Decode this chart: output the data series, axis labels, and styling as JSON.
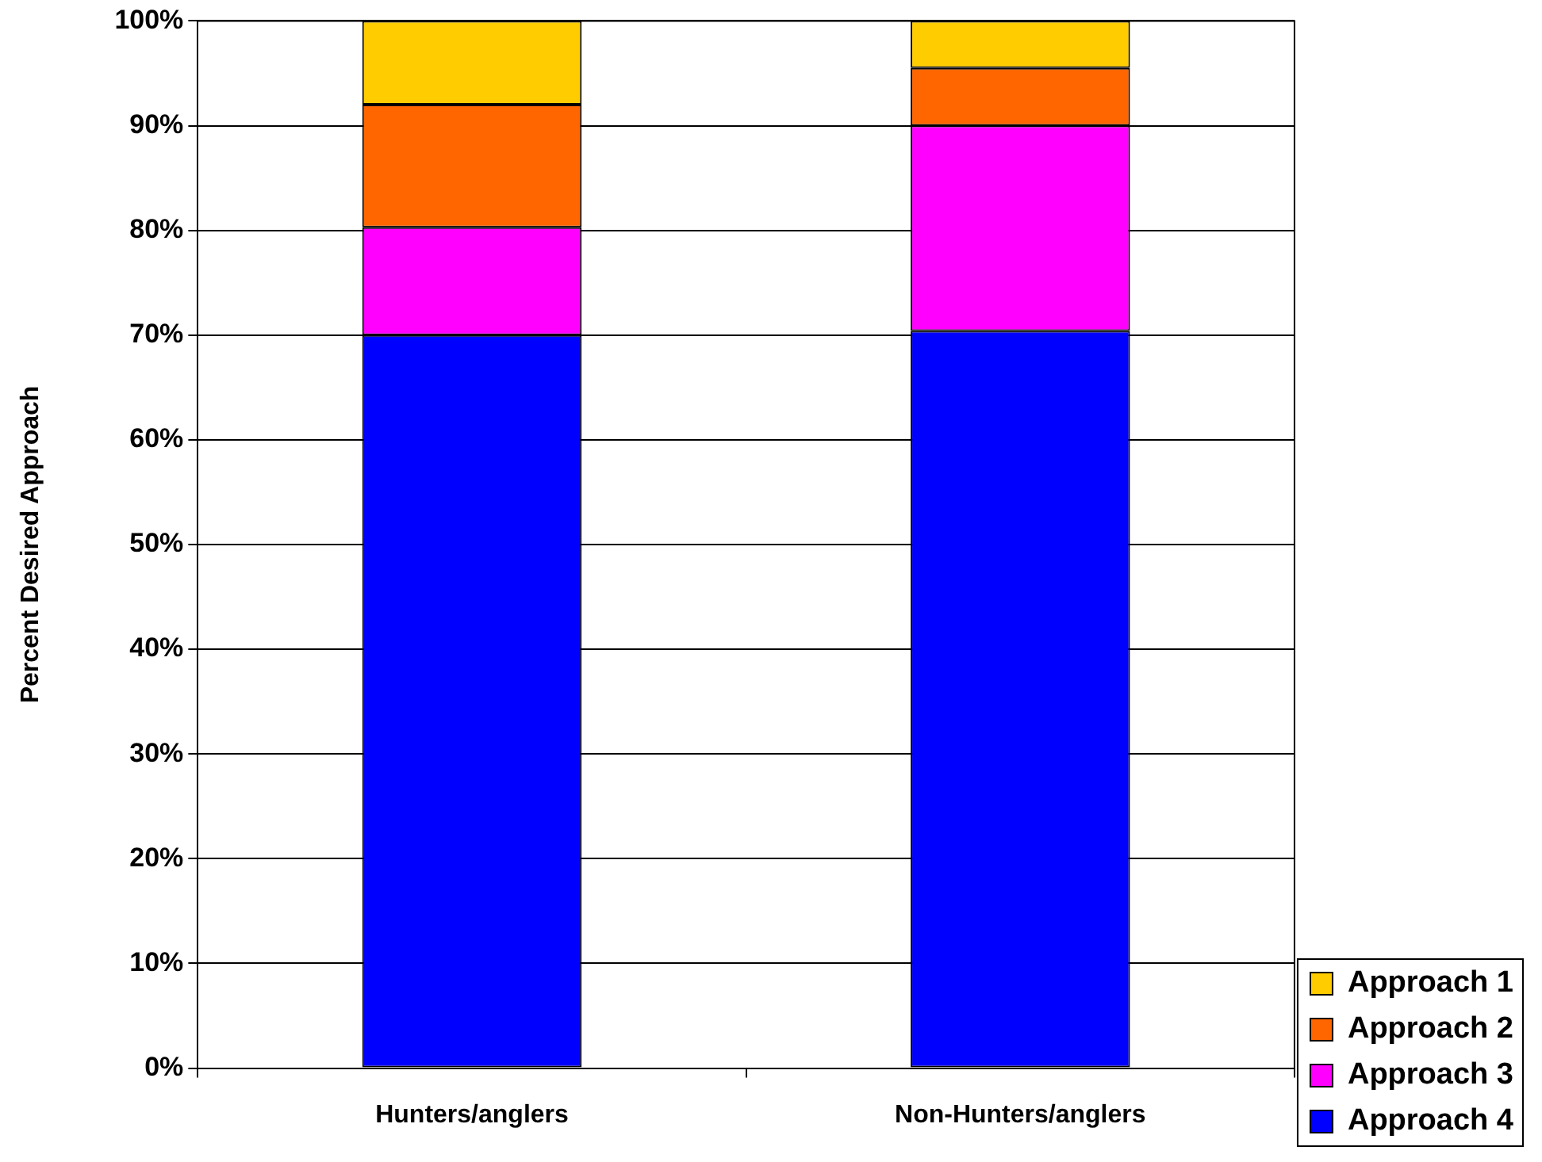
{
  "chart_data": {
    "type": "bar",
    "stacked": true,
    "ylabel": "Percent Desired Approach",
    "categories": [
      "Hunters/anglers",
      "Non-Hunters/anglers"
    ],
    "series": [
      {
        "name": "Approach 4",
        "color": "#0000ff",
        "values": [
          70,
          70.4
        ]
      },
      {
        "name": "Approach 3",
        "color": "#ff00ff",
        "values": [
          10.3,
          19.6
        ]
      },
      {
        "name": "Approach 2",
        "color": "#ff6600",
        "values": [
          11.7,
          5.5
        ]
      },
      {
        "name": "Approach 1",
        "color": "#ffcc00",
        "values": [
          8,
          4.5
        ]
      }
    ],
    "ylim": [
      0,
      100
    ],
    "yticks": [
      {
        "value": 0,
        "label": "0%"
      },
      {
        "value": 10,
        "label": "10%"
      },
      {
        "value": 20,
        "label": "20%"
      },
      {
        "value": 30,
        "label": "30%"
      },
      {
        "value": 40,
        "label": "40%"
      },
      {
        "value": 50,
        "label": "50%"
      },
      {
        "value": 60,
        "label": "60%"
      },
      {
        "value": 70,
        "label": "70%"
      },
      {
        "value": 80,
        "label": "80%"
      },
      {
        "value": 90,
        "label": "90%"
      },
      {
        "value": 100,
        "label": "100%"
      }
    ],
    "grid": "y",
    "legend": "bottom right"
  }
}
